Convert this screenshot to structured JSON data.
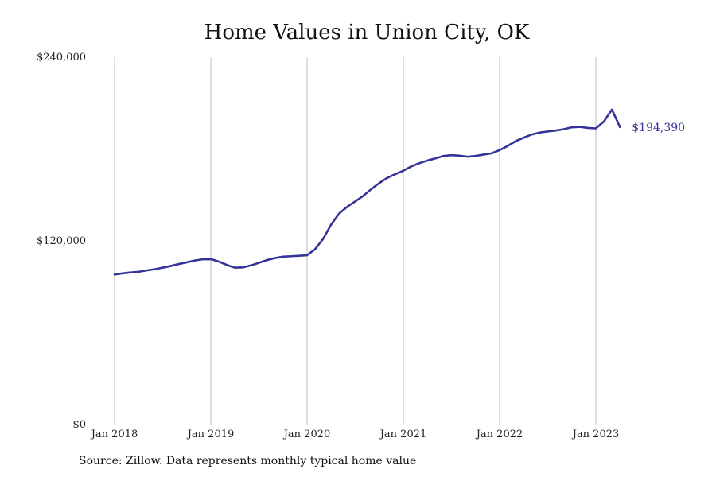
{
  "chart_data": {
    "type": "line",
    "title": "Home Values in Union City, OK",
    "xlabel": "",
    "ylabel": "",
    "x_ticks": [
      "Jan 2018",
      "Jan 2019",
      "Jan 2020",
      "Jan 2021",
      "Jan 2022",
      "Jan 2023"
    ],
    "y_ticks": [
      "$0",
      "$120,000",
      "$240,000"
    ],
    "y_tick_values": [
      0,
      120000,
      240000
    ],
    "ylim": [
      0,
      240000
    ],
    "xlim": [
      "2018-01",
      "2023-04"
    ],
    "grid": "vertical",
    "legend": "none",
    "series": [
      {
        "color": "#33339a",
        "end_label": "$194,390",
        "points": [
          [
            "2018-01",
            98000
          ],
          [
            "2018-02",
            98800
          ],
          [
            "2018-03",
            99400
          ],
          [
            "2018-04",
            99800
          ],
          [
            "2018-05",
            100700
          ],
          [
            "2018-06",
            101500
          ],
          [
            "2018-07",
            102500
          ],
          [
            "2018-08",
            103600
          ],
          [
            "2018-09",
            104900
          ],
          [
            "2018-10",
            106000
          ],
          [
            "2018-11",
            107200
          ],
          [
            "2018-12",
            108000
          ],
          [
            "2019-01",
            108100
          ],
          [
            "2019-02",
            106500
          ],
          [
            "2019-03",
            104300
          ],
          [
            "2019-04",
            102500
          ],
          [
            "2019-05",
            102700
          ],
          [
            "2019-06",
            104000
          ],
          [
            "2019-07",
            105700
          ],
          [
            "2019-08",
            107500
          ],
          [
            "2019-09",
            108800
          ],
          [
            "2019-10",
            109700
          ],
          [
            "2019-11",
            110000
          ],
          [
            "2019-12",
            110300
          ],
          [
            "2020-01",
            110600
          ],
          [
            "2020-02",
            114600
          ],
          [
            "2020-03",
            121300
          ],
          [
            "2020-04",
            130700
          ],
          [
            "2020-05",
            137900
          ],
          [
            "2020-06",
            142300
          ],
          [
            "2020-07",
            145800
          ],
          [
            "2020-08",
            149400
          ],
          [
            "2020-09",
            153800
          ],
          [
            "2020-10",
            157800
          ],
          [
            "2020-11",
            161200
          ],
          [
            "2020-12",
            163600
          ],
          [
            "2021-01",
            165900
          ],
          [
            "2021-02",
            168700
          ],
          [
            "2021-03",
            170800
          ],
          [
            "2021-04",
            172500
          ],
          [
            "2021-05",
            173900
          ],
          [
            "2021-06",
            175500
          ],
          [
            "2021-07",
            176000
          ],
          [
            "2021-08",
            175700
          ],
          [
            "2021-09",
            175000
          ],
          [
            "2021-10",
            175500
          ],
          [
            "2021-11",
            176400
          ],
          [
            "2021-12",
            177200
          ],
          [
            "2022-01",
            179300
          ],
          [
            "2022-02",
            182000
          ],
          [
            "2022-03",
            185200
          ],
          [
            "2022-04",
            187400
          ],
          [
            "2022-05",
            189500
          ],
          [
            "2022-06",
            190800
          ],
          [
            "2022-07",
            191500
          ],
          [
            "2022-08",
            192100
          ],
          [
            "2022-09",
            193000
          ],
          [
            "2022-10",
            194200
          ],
          [
            "2022-11",
            194500
          ],
          [
            "2022-12",
            193800
          ],
          [
            "2023-01",
            193500
          ],
          [
            "2023-02",
            198000
          ],
          [
            "2023-03",
            205800
          ],
          [
            "2023-04",
            194390
          ]
        ]
      }
    ]
  },
  "source_note": "Source: Zillow. Data represents monthly typical home value"
}
